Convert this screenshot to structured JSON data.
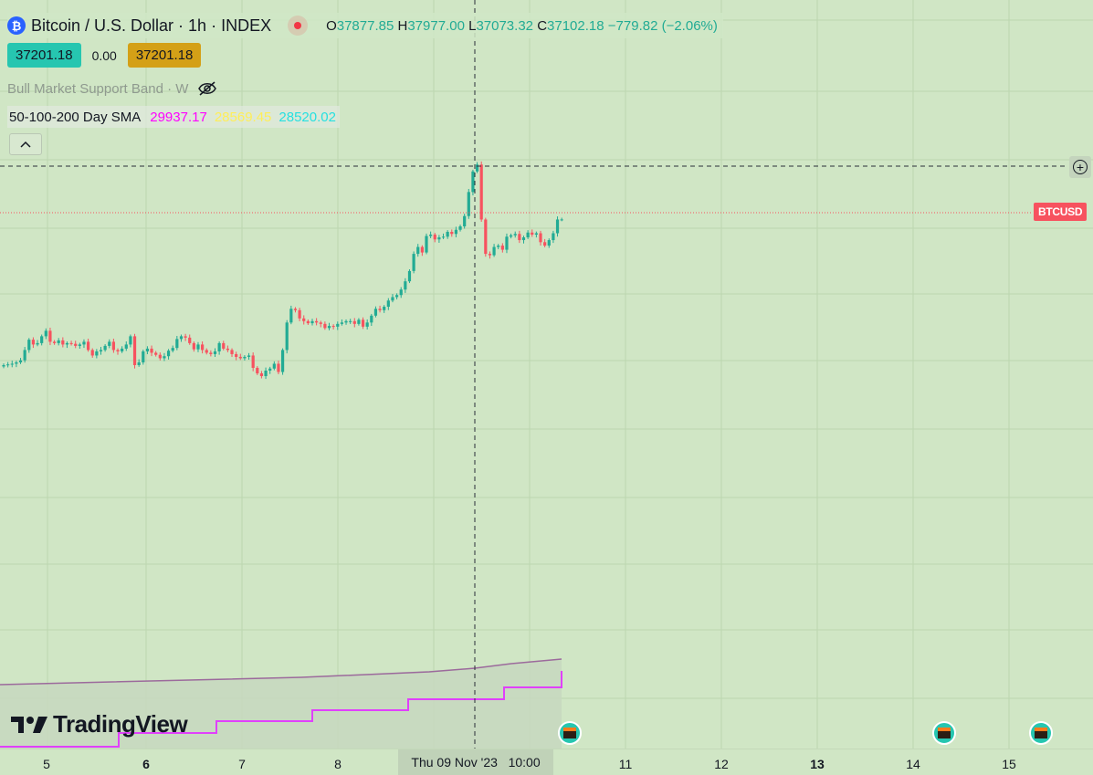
{
  "title": {
    "icon": "bitcoin-icon",
    "text": "Bitcoin / U.S. Dollar · 1h · INDEX",
    "ohlc": {
      "o_label": "O",
      "o_value": "37877.85",
      "h_label": "H",
      "h_value": "37977.00",
      "l_label": "L",
      "l_value": "37073.32",
      "c_label": "C",
      "c_value": "37102.18",
      "change": "−779.82 (−2.06%)"
    }
  },
  "prices": {
    "bid": "37201.18",
    "spread": "0.00",
    "ask": "37201.18"
  },
  "indicators": [
    {
      "name": "Bull Market Support Band · W",
      "icon": "eye-off-icon"
    },
    {
      "name": "50-100-200 Day SMA",
      "values": [
        "29937.17",
        "28569.45",
        "28520.02"
      ],
      "colors": [
        "#ff00ff",
        "#ffee58",
        "#26e0e0"
      ]
    }
  ],
  "symbol_tag": "BTCUSD",
  "logo": "TradingView",
  "time_axis": {
    "ticks": [
      "5",
      "6",
      "7",
      "8",
      "11",
      "12",
      "13",
      "14",
      "15"
    ],
    "crosshair_label": "Thu 09 Nov '23   10:00"
  },
  "chart_data": {
    "type": "candlestick",
    "timeframe": "1h",
    "symbol": "BTCUSD",
    "colors": {
      "up": "#22ab94",
      "down": "#f7525f"
    },
    "closes": [
      35080,
      35090,
      35100,
      35120,
      35150,
      35300,
      35450,
      35380,
      35400,
      35500,
      35580,
      35420,
      35400,
      35440,
      35380,
      35400,
      35390,
      35360,
      35380,
      35420,
      35300,
      35220,
      35280,
      35300,
      35360,
      35420,
      35300,
      35280,
      35320,
      35380,
      35500,
      35080,
      35120,
      35280,
      35320,
      35260,
      35230,
      35180,
      35210,
      35290,
      35330,
      35460,
      35500,
      35480,
      35400,
      35310,
      35380,
      35300,
      35260,
      35240,
      35280,
      35400,
      35320,
      35300,
      35240,
      35200,
      35180,
      35200,
      35220,
      35040,
      34960,
      34920,
      35000,
      35030,
      35100,
      34980,
      35300,
      35700,
      35900,
      35880,
      35760,
      35720,
      35690,
      35720,
      35700,
      35680,
      35620,
      35650,
      35640,
      35680,
      35700,
      35720,
      35720,
      35680,
      35740,
      35640,
      35700,
      35800,
      35900,
      35880,
      35930,
      36020,
      36070,
      36100,
      36180,
      36300,
      36450,
      36700,
      36800,
      36720,
      36960,
      36980,
      36910,
      36940,
      36950,
      37020,
      36990,
      37050,
      37100,
      37250,
      37600,
      37900,
      38000,
      37200,
      36700,
      36680,
      36800,
      36820,
      36760,
      36950,
      36970,
      36990,
      36900,
      36940,
      37010,
      36980,
      37000,
      36870,
      36820,
      36900,
      37000,
      37200,
      37201
    ]
  }
}
